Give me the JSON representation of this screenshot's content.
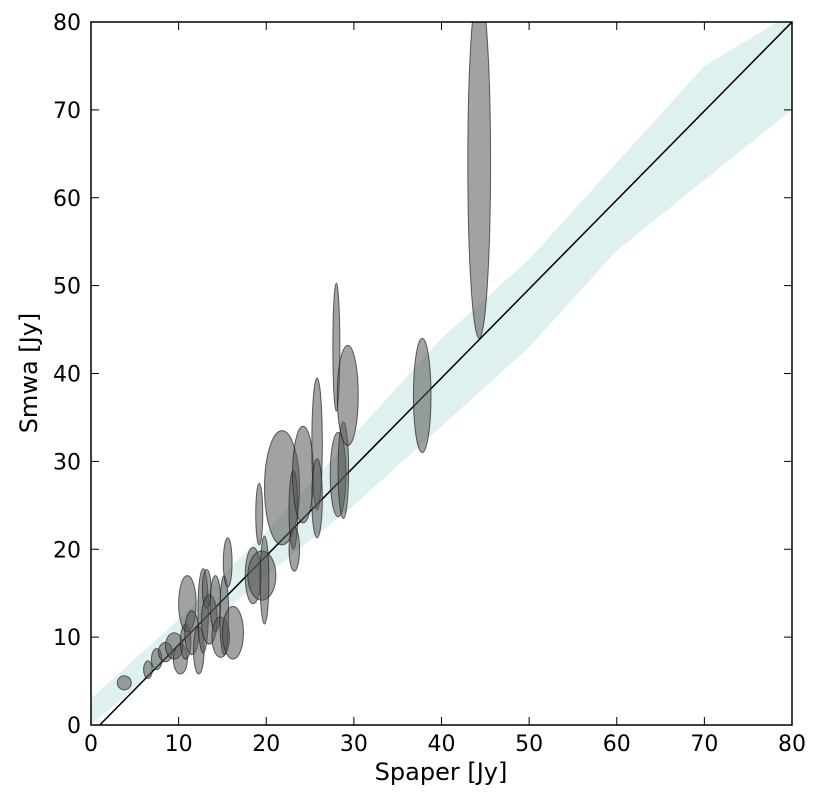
{
  "chart_data": {
    "type": "scatter",
    "title": "",
    "xlabel": "Spaper [Jy]",
    "ylabel": "Smwa [Jy]",
    "xlim": [
      0,
      80
    ],
    "ylim": [
      0,
      80
    ],
    "xticks": [
      0,
      10,
      20,
      30,
      40,
      50,
      60,
      70,
      80
    ],
    "yticks": [
      0,
      10,
      20,
      30,
      40,
      50,
      60,
      70,
      80
    ],
    "grid": false,
    "reference_line": {
      "from": [
        1,
        0
      ],
      "to": [
        80,
        80
      ],
      "color": "#000000"
    },
    "band": {
      "color": "#b9dede",
      "lower": [
        [
          0,
          0
        ],
        [
          10,
          8.5
        ],
        [
          20,
          17
        ],
        [
          30,
          25
        ],
        [
          40,
          34
        ],
        [
          50,
          43
        ],
        [
          60,
          54
        ],
        [
          70,
          62
        ],
        [
          80,
          70
        ]
      ],
      "upper": [
        [
          0,
          3
        ],
        [
          10,
          12
        ],
        [
          20,
          22
        ],
        [
          30,
          33
        ],
        [
          40,
          44
        ],
        [
          50,
          53
        ],
        [
          60,
          64
        ],
        [
          70,
          75
        ],
        [
          80,
          81
        ]
      ]
    },
    "ellipse_color": "#555555",
    "points": [
      {
        "x": 3.8,
        "y": 4.8,
        "xerr": 0.8,
        "yerr": 0.8
      },
      {
        "x": 6.5,
        "y": 6.3,
        "xerr": 0.5,
        "yerr": 1.0
      },
      {
        "x": 7.5,
        "y": 7.5,
        "xerr": 0.6,
        "yerr": 1.2
      },
      {
        "x": 8.5,
        "y": 8.3,
        "xerr": 0.8,
        "yerr": 1.1
      },
      {
        "x": 9.5,
        "y": 9.0,
        "xerr": 1.0,
        "yerr": 1.5
      },
      {
        "x": 10.2,
        "y": 7.5,
        "xerr": 0.8,
        "yerr": 1.7
      },
      {
        "x": 10.8,
        "y": 9.5,
        "xerr": 0.6,
        "yerr": 2.0
      },
      {
        "x": 11.0,
        "y": 13.8,
        "xerr": 1.0,
        "yerr": 3.2
      },
      {
        "x": 11.5,
        "y": 10.5,
        "xerr": 0.8,
        "yerr": 2.5
      },
      {
        "x": 12.3,
        "y": 8.5,
        "xerr": 0.6,
        "yerr": 2.7
      },
      {
        "x": 12.8,
        "y": 13.0,
        "xerr": 0.6,
        "yerr": 4.8
      },
      {
        "x": 13.2,
        "y": 15.5,
        "xerr": 0.5,
        "yerr": 2.2
      },
      {
        "x": 13.5,
        "y": 12.0,
        "xerr": 0.9,
        "yerr": 2.8
      },
      {
        "x": 14.2,
        "y": 13.8,
        "xerr": 0.6,
        "yerr": 3.2
      },
      {
        "x": 14.8,
        "y": 10.0,
        "xerr": 1.0,
        "yerr": 2.3
      },
      {
        "x": 15.2,
        "y": 12.5,
        "xerr": 0.5,
        "yerr": 4.5
      },
      {
        "x": 15.6,
        "y": 18.5,
        "xerr": 0.5,
        "yerr": 2.8
      },
      {
        "x": 16.2,
        "y": 10.5,
        "xerr": 1.2,
        "yerr": 3.0
      },
      {
        "x": 18.5,
        "y": 17.0,
        "xerr": 0.9,
        "yerr": 3.2
      },
      {
        "x": 19.2,
        "y": 24.0,
        "xerr": 0.4,
        "yerr": 3.5
      },
      {
        "x": 19.5,
        "y": 17.0,
        "xerr": 1.6,
        "yerr": 2.8
      },
      {
        "x": 19.8,
        "y": 16.5,
        "xerr": 0.5,
        "yerr": 5.0
      },
      {
        "x": 21.8,
        "y": 27.0,
        "xerr": 2.0,
        "yerr": 6.5
      },
      {
        "x": 23.1,
        "y": 24.5,
        "xerr": 0.5,
        "yerr": 4.5
      },
      {
        "x": 23.2,
        "y": 20.0,
        "xerr": 0.6,
        "yerr": 2.5
      },
      {
        "x": 24.2,
        "y": 28.5,
        "xerr": 1.2,
        "yerr": 5.5
      },
      {
        "x": 25.8,
        "y": 32.0,
        "xerr": 0.6,
        "yerr": 7.5
      },
      {
        "x": 25.8,
        "y": 25.8,
        "xerr": 0.6,
        "yerr": 4.5
      },
      {
        "x": 28.0,
        "y": 43.0,
        "xerr": 0.4,
        "yerr": 7.3
      },
      {
        "x": 28.2,
        "y": 28.5,
        "xerr": 0.9,
        "yerr": 4.8
      },
      {
        "x": 28.8,
        "y": 29.0,
        "xerr": 0.6,
        "yerr": 5.5
      },
      {
        "x": 29.3,
        "y": 37.5,
        "xerr": 1.2,
        "yerr": 5.7
      },
      {
        "x": 37.8,
        "y": 37.5,
        "xerr": 1.0,
        "yerr": 6.5
      },
      {
        "x": 44.3,
        "y": 64.0,
        "xerr": 1.3,
        "yerr": 20.0
      }
    ]
  }
}
